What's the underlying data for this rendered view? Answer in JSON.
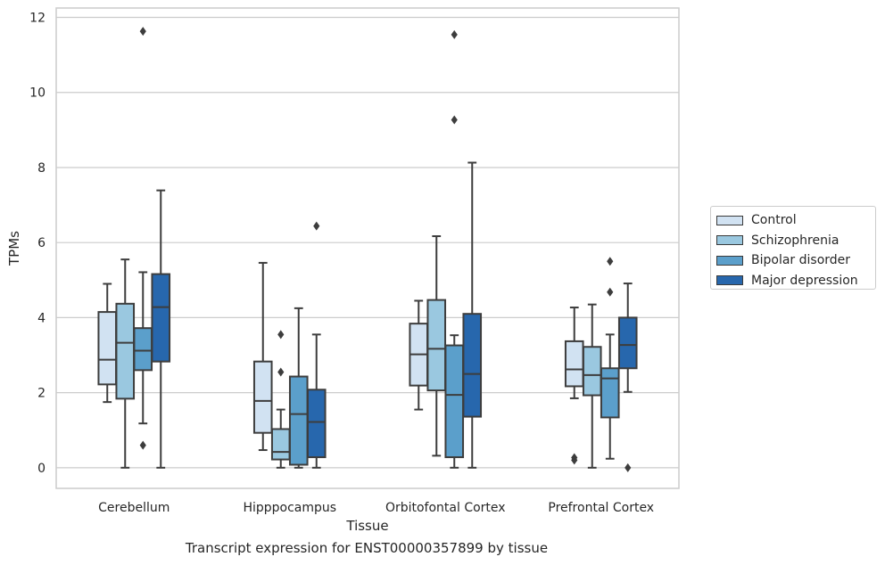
{
  "chart_data": {
    "type": "boxplot",
    "title": "Transcript expression for ENST00000357899 by tissue",
    "xlabel": "Tissue",
    "ylabel": "TPMs",
    "ylim": [
      -0.55,
      12.25
    ],
    "yticks": [
      0,
      2,
      4,
      6,
      8,
      10,
      12
    ],
    "grid": true,
    "legend_position": "right",
    "categories": [
      "Cerebellum",
      "Hipppocampus",
      "Orbitofontal Cortex",
      "Prefrontal Cortex"
    ],
    "series": [
      {
        "name": "Control",
        "color": "#d1e2f2",
        "boxes": [
          {
            "whislo": 1.75,
            "q1": 2.22,
            "median": 2.88,
            "q3": 4.15,
            "whishi": 4.9,
            "fliers": []
          },
          {
            "whislo": 0.47,
            "q1": 0.93,
            "median": 1.78,
            "q3": 2.83,
            "whishi": 5.46,
            "fliers": []
          },
          {
            "whislo": 1.55,
            "q1": 2.19,
            "median": 3.02,
            "q3": 3.84,
            "whishi": 4.45,
            "fliers": []
          },
          {
            "whislo": 1.85,
            "q1": 2.17,
            "median": 2.62,
            "q3": 3.37,
            "whishi": 4.27,
            "fliers": [
              0.27,
              0.2
            ]
          }
        ]
      },
      {
        "name": "Schizophrenia",
        "color": "#9ac8e0",
        "boxes": [
          {
            "whislo": 0.0,
            "q1": 1.84,
            "median": 3.33,
            "q3": 4.37,
            "whishi": 5.55,
            "fliers": []
          },
          {
            "whislo": 0.0,
            "q1": 0.22,
            "median": 0.42,
            "q3": 1.03,
            "whishi": 1.55,
            "fliers": [
              3.55,
              2.55
            ]
          },
          {
            "whislo": 0.32,
            "q1": 2.06,
            "median": 3.17,
            "q3": 4.47,
            "whishi": 6.17,
            "fliers": []
          },
          {
            "whislo": 0.0,
            "q1": 1.93,
            "median": 2.47,
            "q3": 3.22,
            "whishi": 4.35,
            "fliers": []
          }
        ]
      },
      {
        "name": "Bipolar disorder",
        "color": "#5b9fcb",
        "boxes": [
          {
            "whislo": 1.18,
            "q1": 2.6,
            "median": 3.12,
            "q3": 3.72,
            "whishi": 5.21,
            "fliers": [
              11.63,
              0.6
            ]
          },
          {
            "whislo": 0.0,
            "q1": 0.08,
            "median": 1.43,
            "q3": 2.43,
            "whishi": 4.25,
            "fliers": []
          },
          {
            "whislo": 0.0,
            "q1": 0.28,
            "median": 1.94,
            "q3": 3.26,
            "whishi": 3.53,
            "fliers": [
              11.54,
              9.27
            ]
          },
          {
            "whislo": 0.24,
            "q1": 1.34,
            "median": 2.38,
            "q3": 2.65,
            "whishi": 3.55,
            "fliers": [
              5.5,
              4.68
            ]
          }
        ]
      },
      {
        "name": "Major depression",
        "color": "#2767ad",
        "boxes": [
          {
            "whislo": 0.0,
            "q1": 2.83,
            "median": 4.28,
            "q3": 5.16,
            "whishi": 7.39,
            "fliers": []
          },
          {
            "whislo": 0.0,
            "q1": 0.28,
            "median": 1.22,
            "q3": 2.08,
            "whishi": 3.55,
            "fliers": [
              6.44
            ]
          },
          {
            "whislo": 0.0,
            "q1": 1.36,
            "median": 2.5,
            "q3": 4.1,
            "whishi": 8.13,
            "fliers": []
          },
          {
            "whislo": 2.02,
            "q1": 2.65,
            "median": 3.27,
            "q3": 4.0,
            "whishi": 4.91,
            "fliers": [
              0.0
            ]
          }
        ]
      }
    ]
  }
}
